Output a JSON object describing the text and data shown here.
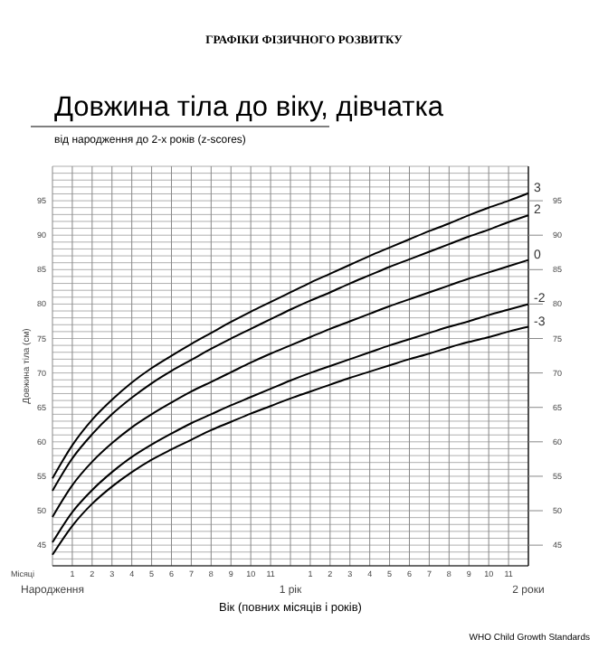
{
  "chart_data": {
    "type": "line",
    "title": "Довжина тіла до віку, дівчатка",
    "subtitle": "від народження до 2-х років (z-scores)",
    "xlabel": "Вік (повних місяців і років)",
    "ylabel": "Довжина тіла (см)",
    "annotations": [
      "ГРАФІКИ ФІЗИЧНОГО РОЗВИТКУ",
      "Місяці",
      "Народження",
      "1 рік",
      "2 роки",
      "WHO Child Growth Standards"
    ],
    "categories": [
      null,
      "1",
      "2",
      "3",
      "4",
      "5",
      "6",
      "7",
      "8",
      "9",
      "10",
      "11",
      null,
      "1",
      "2",
      "3",
      "4",
      "5",
      "6",
      "7",
      "8",
      "9",
      "10",
      "11",
      null
    ],
    "ylim": [
      42,
      100
    ],
    "yticks": [
      {
        "value": 42,
        "label": null
      },
      {
        "value": 43,
        "label": null
      },
      {
        "value": 44,
        "label": null
      },
      45,
      {
        "value": 46,
        "label": null
      },
      {
        "value": 47,
        "label": null
      },
      {
        "value": 48,
        "label": null
      },
      {
        "value": 49,
        "label": null
      },
      50,
      {
        "value": 51,
        "label": null
      },
      {
        "value": 52,
        "label": null
      },
      {
        "value": 53,
        "label": null
      },
      {
        "value": 54,
        "label": null
      },
      55,
      {
        "value": 56,
        "label": null
      },
      {
        "value": 57,
        "label": null
      },
      {
        "value": 58,
        "label": null
      },
      {
        "value": 59,
        "label": null
      },
      60,
      {
        "value": 61,
        "label": null
      },
      {
        "value": 62,
        "label": null
      },
      {
        "value": 63,
        "label": null
      },
      {
        "value": 64,
        "label": null
      },
      65,
      {
        "value": 66,
        "label": null
      },
      {
        "value": 67,
        "label": null
      },
      {
        "value": 68,
        "label": null
      },
      {
        "value": 69,
        "label": null
      },
      70,
      {
        "value": 71,
        "label": null
      },
      {
        "value": 72,
        "label": null
      },
      {
        "value": 73,
        "label": null
      },
      {
        "value": 74,
        "label": null
      },
      75,
      {
        "value": 76,
        "label": null
      },
      {
        "value": 77,
        "label": null
      },
      {
        "value": 78,
        "label": null
      },
      {
        "value": 79,
        "label": null
      },
      80,
      {
        "value": 81,
        "label": null
      },
      {
        "value": 82,
        "label": null
      },
      {
        "value": 83,
        "label": null
      },
      {
        "value": 84,
        "label": null
      },
      85,
      {
        "value": 86,
        "label": null
      },
      {
        "value": 87,
        "label": null
      },
      {
        "value": 88,
        "label": null
      },
      {
        "value": 89,
        "label": null
      },
      90,
      {
        "value": 91,
        "label": null
      },
      {
        "value": 92,
        "label": null
      },
      {
        "value": 93,
        "label": null
      },
      {
        "value": 94,
        "label": null
      },
      95,
      {
        "value": 96,
        "label": null
      },
      {
        "value": 97,
        "label": null
      },
      {
        "value": 98,
        "label": null
      },
      {
        "value": 99,
        "label": null
      },
      {
        "value": 100,
        "label": null
      }
    ],
    "y2lim": [
      42,
      100
    ],
    "y2ticks": [
      45,
      50,
      55,
      60,
      65,
      70,
      75,
      80,
      85,
      90,
      95
    ],
    "grid": true,
    "marker": "none",
    "line_style": "solid",
    "series": [
      {
        "name": "3",
        "color": "#000000",
        "values": [
          54.7,
          59.5,
          63.2,
          66.1,
          68.6,
          70.7,
          72.5,
          74.2,
          75.8,
          77.4,
          78.9,
          80.3,
          81.7,
          83.1,
          84.4,
          85.7,
          87.0,
          88.2,
          89.4,
          90.6,
          91.7,
          92.9,
          94.0,
          95.0,
          96.1
        ]
      },
      {
        "name": "2",
        "color": "#000000",
        "values": [
          52.9,
          57.6,
          61.1,
          64.0,
          66.4,
          68.5,
          70.3,
          71.9,
          73.5,
          75.0,
          76.4,
          77.8,
          79.2,
          80.5,
          81.7,
          83.0,
          84.2,
          85.4,
          86.5,
          87.6,
          88.7,
          89.8,
          90.8,
          91.9,
          92.9
        ]
      },
      {
        "name": "0",
        "color": "#000000",
        "values": [
          49.1,
          53.7,
          57.1,
          59.8,
          62.1,
          64.0,
          65.7,
          67.3,
          68.7,
          70.1,
          71.5,
          72.8,
          74.0,
          75.2,
          76.4,
          77.5,
          78.6,
          79.7,
          80.7,
          81.7,
          82.7,
          83.7,
          84.6,
          85.5,
          86.4
        ]
      },
      {
        "name": "-2",
        "color": "#000000",
        "values": [
          45.4,
          49.8,
          53.0,
          55.6,
          57.8,
          59.6,
          61.2,
          62.7,
          64.0,
          65.3,
          66.5,
          67.7,
          68.9,
          70.0,
          71.0,
          72.0,
          73.0,
          74.0,
          74.9,
          75.8,
          76.7,
          77.5,
          78.4,
          79.2,
          80.0
        ]
      },
      {
        "name": "-3",
        "color": "#000000",
        "values": [
          43.6,
          47.8,
          51.0,
          53.5,
          55.6,
          57.4,
          58.9,
          60.3,
          61.7,
          62.9,
          64.1,
          65.2,
          66.3,
          67.3,
          68.3,
          69.3,
          70.2,
          71.1,
          72.0,
          72.8,
          73.7,
          74.5,
          75.2,
          76.0,
          76.7
        ]
      }
    ]
  }
}
